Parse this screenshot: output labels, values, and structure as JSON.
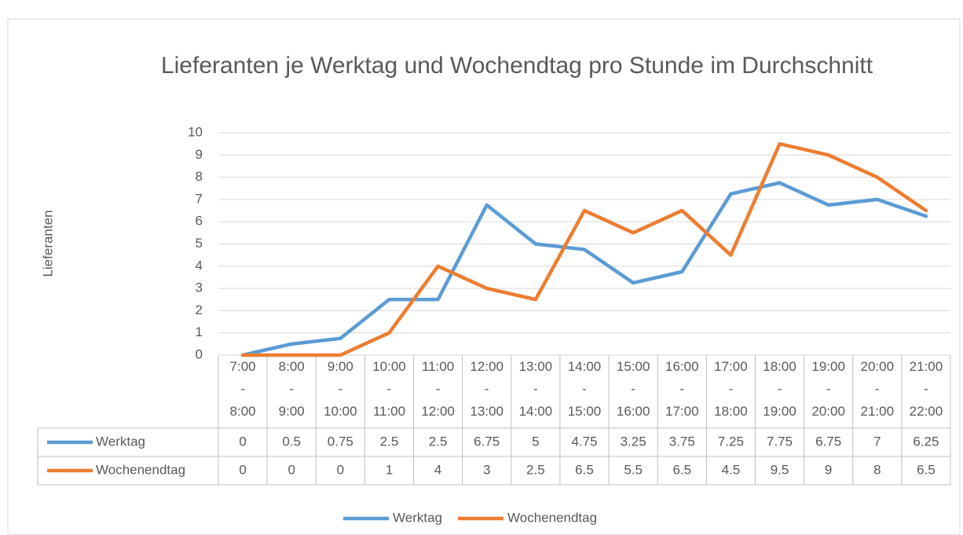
{
  "chart_data": {
    "type": "line",
    "title": "Lieferanten je Werktag und Wochendtag pro Stunde im Durchschnitt",
    "y_label": "Lieferanten",
    "categories": [
      "7:00 - 8:00",
      "8:00 - 9:00",
      "9:00 - 10:00",
      "10:00 - 11:00",
      "11:00 - 12:00",
      "12:00 - 13:00",
      "13:00 - 14:00",
      "14:00 - 15:00",
      "15:00 - 16:00",
      "16:00 - 17:00",
      "17:00 - 18:00",
      "18:00 - 19:00",
      "19:00 - 20:00",
      "20:00 - 21:00",
      "21:00 - 22:00"
    ],
    "series": [
      {
        "name": "Werktag",
        "color": "#5b9bd5",
        "values": [
          0,
          0.5,
          0.75,
          2.5,
          2.5,
          6.75,
          5,
          4.75,
          3.25,
          3.75,
          7.25,
          7.75,
          6.75,
          7,
          6.25
        ]
      },
      {
        "name": "Wochenendtag",
        "color": "#ed7d31",
        "values": [
          0,
          0,
          0,
          1,
          4,
          3,
          2.5,
          6.5,
          5.5,
          6.5,
          4.5,
          9.5,
          9,
          8,
          6.5
        ]
      }
    ],
    "ylim": [
      0,
      10
    ],
    "yticks": [
      0,
      1,
      2,
      3,
      4,
      5,
      6,
      7,
      8,
      9,
      10
    ],
    "grid": true,
    "data_table": true,
    "legend": "bottom"
  }
}
